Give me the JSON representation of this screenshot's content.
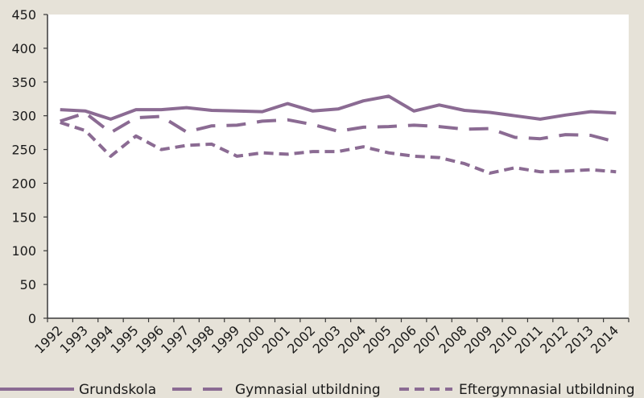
{
  "chart_data": {
    "type": "line",
    "categories": [
      "1992",
      "1993",
      "1994",
      "1995",
      "1996",
      "1997",
      "1998",
      "1999",
      "2000",
      "2001",
      "2002",
      "2003",
      "2004",
      "2005",
      "2006",
      "2007",
      "2008",
      "2009",
      "2010",
      "2011",
      "2012",
      "2013",
      "2014"
    ],
    "ylim": [
      0,
      450
    ],
    "yticks": [
      0,
      50,
      100,
      150,
      200,
      250,
      300,
      350,
      400,
      450
    ],
    "grid": false,
    "legend_position": "bottom",
    "series": [
      {
        "name": "Grundskola",
        "style": "solid",
        "values": [
          309,
          307,
          295,
          309,
          309,
          312,
          308,
          307,
          306,
          318,
          307,
          310,
          322,
          329,
          307,
          316,
          308,
          305,
          300,
          295,
          301,
          306,
          304
        ]
      },
      {
        "name": "Gymnasial utbildning",
        "style": "long-dash",
        "values": [
          292,
          304,
          275,
          297,
          299,
          276,
          285,
          286,
          292,
          294,
          287,
          277,
          283,
          284,
          286,
          284,
          280,
          281,
          268,
          266,
          272,
          271,
          261
        ]
      },
      {
        "name": "Eftergymnasial utbildning",
        "style": "short-dash",
        "values": [
          290,
          278,
          240,
          270,
          250,
          256,
          258,
          240,
          245,
          243,
          247,
          247,
          254,
          245,
          240,
          238,
          229,
          215,
          223,
          217,
          218,
          220,
          217
        ]
      }
    ],
    "colors": {
      "line": "#8b6b93",
      "axis": "#3a3a3a",
      "plot_bg": "#ffffff",
      "page_bg": "#e6e2d8"
    }
  }
}
